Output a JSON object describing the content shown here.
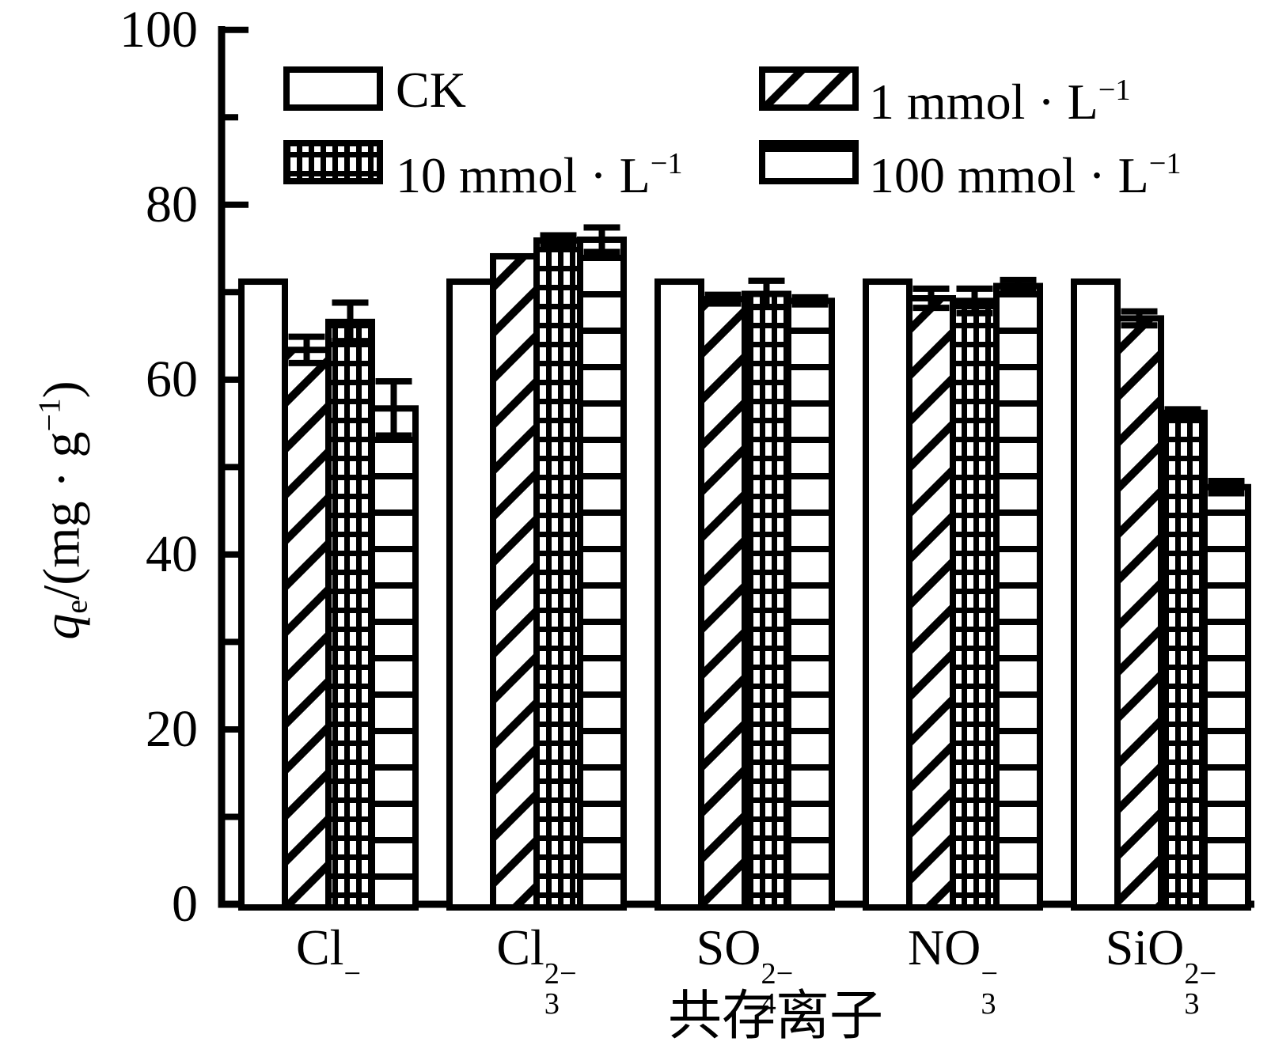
{
  "colors": {
    "ink": "#000000",
    "background": "#ffffff"
  },
  "chart_data": {
    "type": "bar",
    "title": "",
    "xlabel": "共存离子",
    "ylabel_text": "qe/(mg · g−1)",
    "ylabel_parts": [
      {
        "t": "q",
        "style": "italic"
      },
      {
        "t": "e",
        "script": "sub"
      },
      {
        "t": "/(mg · g",
        "style": ""
      },
      {
        "t": "−1",
        "script": "sup"
      },
      {
        "t": ")",
        "style": ""
      }
    ],
    "ylim": [
      0,
      100
    ],
    "yticks_major": [
      0,
      20,
      40,
      60,
      80,
      100
    ],
    "yticks_minor": [
      10,
      30,
      50,
      70,
      90
    ],
    "grid": false,
    "legend_position": "top-inside-two-columns",
    "categories_text": [
      "Cl−",
      "Cl3 2−",
      "SO4 2−",
      "NO3 −",
      "SiO3 2−"
    ],
    "categories": [
      {
        "base": "Cl",
        "sub": "",
        "sup": "−"
      },
      {
        "base": "Cl",
        "sub": "3",
        "sup": "2−"
      },
      {
        "base": "SO",
        "sub": "4",
        "sup": "2−"
      },
      {
        "base": "NO",
        "sub": "3",
        "sup": "−"
      },
      {
        "base": "SiO",
        "sub": "3",
        "sup": "2−"
      }
    ],
    "series": [
      {
        "name": "CK",
        "label_base": "CK",
        "label_sup": "",
        "pattern": "plain",
        "values": [
          71.2,
          71.2,
          71.2,
          71.2,
          71.2
        ],
        "errors": [
          null,
          null,
          null,
          null,
          null
        ]
      },
      {
        "name": "1 mmol·L−1",
        "label_base": "1 mmol · L",
        "label_sup": "−1",
        "pattern": "diagonal-hatch",
        "values": [
          63.4,
          74.1,
          69.2,
          69.3,
          67.0
        ],
        "errors": [
          1.5,
          null,
          0.5,
          1.1,
          0.8
        ]
      },
      {
        "name": "10 mmol·L−1",
        "label_base": "10 mmol · L",
        "label_sup": "−1",
        "pattern": "grid-hatch",
        "values": [
          66.6,
          75.9,
          69.8,
          69.0,
          56.2
        ],
        "errors": [
          2.2,
          0.6,
          1.5,
          1.4,
          0.4
        ]
      },
      {
        "name": "100 mmol·L−1",
        "label_base": "100 mmol · L",
        "label_sup": "−1",
        "pattern": "horizontal-lines",
        "values": [
          56.7,
          76.0,
          69.0,
          70.7,
          47.7
        ],
        "errors": [
          3.1,
          1.4,
          0.4,
          0.7,
          0.7
        ]
      }
    ],
    "legend_rows": [
      [
        0,
        1
      ],
      [
        2,
        3
      ]
    ]
  }
}
